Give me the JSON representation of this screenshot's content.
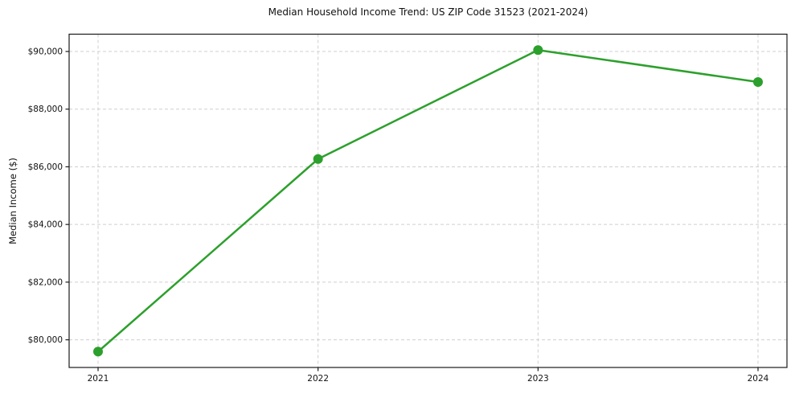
{
  "chart_data": {
    "type": "line",
    "title": "Median Household Income Trend: US ZIP Code 31523 (2021-2024)",
    "xlabel": "",
    "ylabel": "Median Income ($)",
    "categories": [
      "2021",
      "2022",
      "2023",
      "2024"
    ],
    "series": [
      {
        "name": "Median Household Income",
        "values": [
          79590,
          86270,
          90050,
          88940
        ]
      }
    ],
    "yticks": [
      80000,
      82000,
      84000,
      86000,
      88000,
      90000
    ],
    "ytick_labels": [
      "$80,000",
      "$82,000",
      "$84,000",
      "$86,000",
      "$88,000",
      "$90,000"
    ],
    "ylim": [
      79040,
      90600
    ],
    "grid": "dashed, horizontal and vertical",
    "legend": "none",
    "line_color": "#2ca02c",
    "marker": "circle",
    "grid_color": "#cfcfcf",
    "spine_color": "#1a1a1a",
    "text_color": "#111111",
    "background_color": "#ffffff"
  }
}
